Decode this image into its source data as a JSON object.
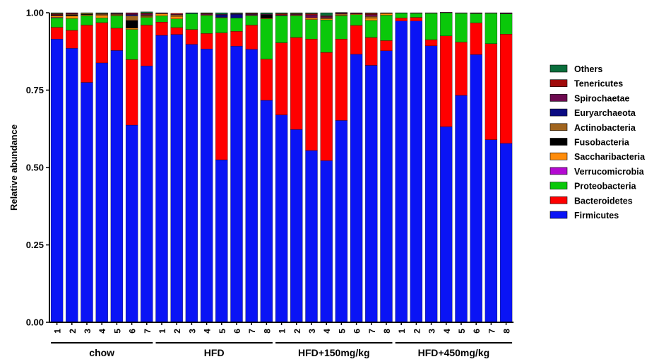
{
  "chart_data": {
    "type": "stacked-bar",
    "title": "",
    "xlabel": "",
    "ylabel": "Relative abundance",
    "ylim": [
      0,
      1
    ],
    "yticks": [
      "0.00",
      "0.25",
      "0.50",
      "0.75",
      "1.00"
    ],
    "legend_position": "right",
    "groups": [
      {
        "name": "chow",
        "bars": [
          "1",
          "2",
          "3",
          "4",
          "5",
          "6",
          "7"
        ]
      },
      {
        "name": "HFD",
        "bars": [
          "1",
          "2",
          "3",
          "4",
          "5",
          "6",
          "7",
          "8"
        ]
      },
      {
        "name": "HFD+150mg/kg",
        "bars": [
          "1",
          "2",
          "3",
          "4",
          "5",
          "6",
          "7",
          "8"
        ]
      },
      {
        "name": "HFD+450mg/kg",
        "bars": [
          "1",
          "2",
          "3",
          "4",
          "5",
          "6",
          "7",
          "8"
        ]
      }
    ],
    "series": [
      {
        "name": "Firmicutes",
        "color": "#0a14f5",
        "values": [
          0.915,
          0.885,
          0.775,
          0.838,
          0.878,
          0.637,
          0.828,
          0.927,
          0.93,
          0.898,
          0.883,
          0.525,
          0.892,
          0.882,
          0.717,
          0.67,
          0.623,
          0.555,
          0.522,
          0.652,
          0.866,
          0.83,
          0.877,
          0.973,
          0.973,
          0.893,
          0.632,
          0.733,
          0.865,
          0.59,
          0.578
        ]
      },
      {
        "name": "Bacteroidetes",
        "color": "#ff0000",
        "values": [
          0.038,
          0.058,
          0.185,
          0.13,
          0.072,
          0.212,
          0.132,
          0.043,
          0.022,
          0.048,
          0.05,
          0.41,
          0.048,
          0.078,
          0.133,
          0.233,
          0.297,
          0.36,
          0.35,
          0.263,
          0.093,
          0.09,
          0.033,
          0.01,
          0.012,
          0.02,
          0.293,
          0.172,
          0.102,
          0.31,
          0.353
        ]
      },
      {
        "name": "Proteobacteria",
        "color": "#0ac80a",
        "values": [
          0.03,
          0.038,
          0.03,
          0.015,
          0.04,
          0.097,
          0.025,
          0.02,
          0.028,
          0.05,
          0.058,
          0.048,
          0.043,
          0.03,
          0.13,
          0.087,
          0.07,
          0.063,
          0.105,
          0.075,
          0.035,
          0.055,
          0.082,
          0.015,
          0.013,
          0.085,
          0.075,
          0.093,
          0.03,
          0.098,
          0.065
        ]
      },
      {
        "name": "Verrucomicrobia",
        "color": "#b40ad2",
        "values": [
          0.002,
          0,
          0,
          0,
          0,
          0,
          0,
          0,
          0,
          0,
          0,
          0,
          0,
          0,
          0,
          0,
          0,
          0,
          0,
          0,
          0,
          0,
          0,
          0,
          0,
          0,
          0,
          0,
          0,
          0,
          0
        ]
      },
      {
        "name": "Saccharibacteria",
        "color": "#ff8c0a",
        "values": [
          0.004,
          0.008,
          0.003,
          0.008,
          0.002,
          0.004,
          0.003,
          0.006,
          0.008,
          0,
          0.002,
          0.002,
          0,
          0.002,
          0.002,
          0,
          0.002,
          0.005,
          0.003,
          0.002,
          0.002,
          0.007,
          0.005,
          0,
          0,
          0,
          0,
          0,
          0,
          0,
          0
        ]
      },
      {
        "name": "Fusobacteria",
        "color": "#000000",
        "values": [
          0.001,
          0.003,
          0.002,
          0,
          0,
          0.025,
          0.002,
          0,
          0,
          0,
          0,
          0,
          0,
          0,
          0.012,
          0,
          0,
          0,
          0,
          0,
          0,
          0,
          0,
          0,
          0,
          0,
          0,
          0,
          0,
          0,
          0
        ]
      },
      {
        "name": "Actinobacteria",
        "color": "#a0641e",
        "values": [
          0.002,
          0.003,
          0.003,
          0.004,
          0.003,
          0.015,
          0.003,
          0.002,
          0.005,
          0,
          0,
          0,
          0,
          0,
          0,
          0,
          0,
          0,
          0.004,
          0.004,
          0,
          0.006,
          0.002,
          0,
          0,
          0,
          0,
          0,
          0,
          0,
          0
        ]
      },
      {
        "name": "Euryarchaeota",
        "color": "#0a0a82",
        "values": [
          0,
          0,
          0,
          0,
          0,
          0.004,
          0,
          0,
          0,
          0,
          0,
          0.008,
          0.012,
          0.002,
          0,
          0,
          0,
          0,
          0,
          0,
          0,
          0,
          0,
          0,
          0,
          0,
          0,
          0,
          0,
          0,
          0
        ]
      },
      {
        "name": "Spirochaetae",
        "color": "#6e0a50",
        "values": [
          0.002,
          0.002,
          0,
          0,
          0.002,
          0.004,
          0.003,
          0.002,
          0.002,
          0,
          0.003,
          0.002,
          0.002,
          0.002,
          0.002,
          0.003,
          0.003,
          0.01,
          0.004,
          0.002,
          0.002,
          0.006,
          0.001,
          0,
          0.002,
          0.002,
          0.002,
          0.002,
          0.002,
          0.002,
          0.002
        ]
      },
      {
        "name": "Tenericutes",
        "color": "#a00a0a",
        "values": [
          0.003,
          0.002,
          0,
          0.002,
          0.001,
          0.002,
          0.003,
          0,
          0.003,
          0,
          0.002,
          0,
          0,
          0.002,
          0,
          0.004,
          0.002,
          0.004,
          0.002,
          0.002,
          0.002,
          0.004,
          0,
          0,
          0,
          0,
          0,
          0,
          0.001,
          0,
          0.001
        ]
      },
      {
        "name": "Others",
        "color": "#0a6e3c",
        "values": [
          0.003,
          0.001,
          0.002,
          0.003,
          0.002,
          0,
          0.004,
          0,
          0,
          0.004,
          0.002,
          0.005,
          0.003,
          0.002,
          0.004,
          0.003,
          0.003,
          0.003,
          0.01,
          0.001,
          0,
          0.002,
          0,
          0.002,
          0,
          0,
          0,
          0,
          0,
          0,
          0.001
        ]
      }
    ]
  }
}
